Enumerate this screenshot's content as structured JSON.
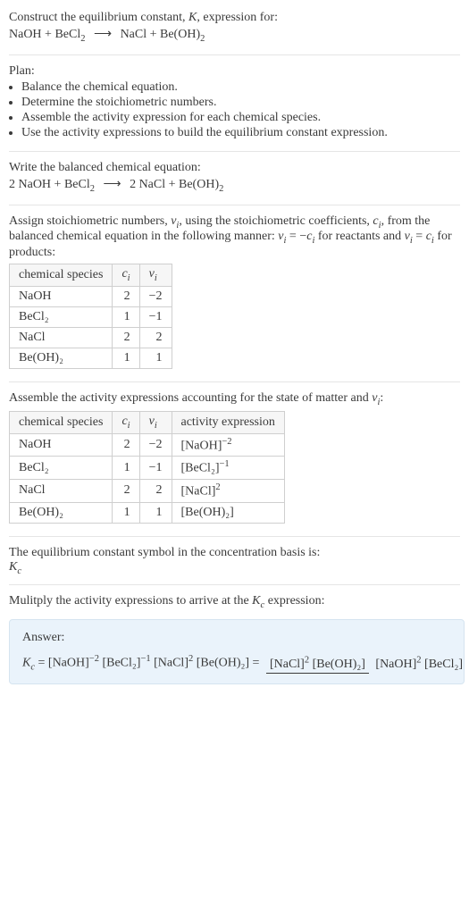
{
  "intro": {
    "line1": "Construct the equilibrium constant, ",
    "Ksym": "K",
    "line1b": ", expression for:",
    "eq_l1": "NaOH + BeCl",
    "eq_l1_sub": "2",
    "eq_arrow": "⟶",
    "eq_r1": "NaCl + Be(OH)",
    "eq_r1_sub": "2"
  },
  "plan": {
    "title": "Plan:",
    "items": [
      "Balance the chemical equation.",
      "Determine the stoichiometric numbers.",
      "Assemble the activity expression for each chemical species.",
      "Use the activity expressions to build the equilibrium constant expression."
    ]
  },
  "balanced": {
    "title": "Write the balanced chemical equation:",
    "l": "2 NaOH + BeCl",
    "l_sub": "2",
    "arrow": "⟶",
    "r": "2 NaCl + Be(OH)",
    "r_sub": "2"
  },
  "stoich": {
    "para_a": "Assign stoichiometric numbers, ",
    "nu": "ν",
    "isub": "i",
    "para_b": ", using the stoichiometric coefficients, ",
    "c": "c",
    "para_c": ", from the balanced chemical equation in the following manner: ",
    "eq1": " = −",
    "para_d": " for reactants and ",
    "eq2": " = ",
    "para_e": " for products:",
    "headers": {
      "h1": "chemical species",
      "h2": "cᵢ",
      "h3": "νᵢ"
    },
    "rows": [
      {
        "sp": "NaOH",
        "c": "2",
        "v": "−2"
      },
      {
        "sp": "BeCl₂",
        "c": "1",
        "v": "−1"
      },
      {
        "sp": "NaCl",
        "c": "2",
        "v": "2"
      },
      {
        "sp": "Be(OH)₂",
        "c": "1",
        "v": "1"
      }
    ]
  },
  "activity": {
    "title_a": "Assemble the activity expressions accounting for the state of matter and ",
    "title_b": ":",
    "headers": {
      "h1": "chemical species",
      "h2": "cᵢ",
      "h3": "νᵢ",
      "h4": "activity expression"
    },
    "rows": [
      {
        "sp": "NaOH",
        "c": "2",
        "v": "−2",
        "ae_pre": "[NaOH]",
        "ae_sup": "−2"
      },
      {
        "sp": "BeCl₂",
        "c": "1",
        "v": "−1",
        "ae_pre": "[BeCl₂]",
        "ae_sup": "−1"
      },
      {
        "sp": "NaCl",
        "c": "2",
        "v": "2",
        "ae_pre": "[NaCl]",
        "ae_sup": "2"
      },
      {
        "sp": "Be(OH)₂",
        "c": "1",
        "v": "1",
        "ae_pre": "[Be(OH)₂]",
        "ae_sup": ""
      }
    ]
  },
  "kcsym": {
    "line": "The equilibrium constant symbol in the concentration basis is:",
    "K": "K",
    "c": "c"
  },
  "mult": {
    "line_a": "Mulitply the activity expressions to arrive at the ",
    "line_b": " expression:"
  },
  "answer": {
    "label": "Answer:",
    "lhs_K": "K",
    "lhs_c": "c",
    "eq": " = [NaOH]",
    "e1": "−2",
    "t2": " [BeCl₂]",
    "e2": "−1",
    "t3": " [NaCl]",
    "e3": "2",
    "t4": " [Be(OH)₂] = ",
    "num_a": "[NaCl]",
    "num_e": "2",
    "num_b": " [Be(OH)₂]",
    "den_a": "[NaOH]",
    "den_e": "2",
    "den_b": " [BeCl₂]"
  }
}
